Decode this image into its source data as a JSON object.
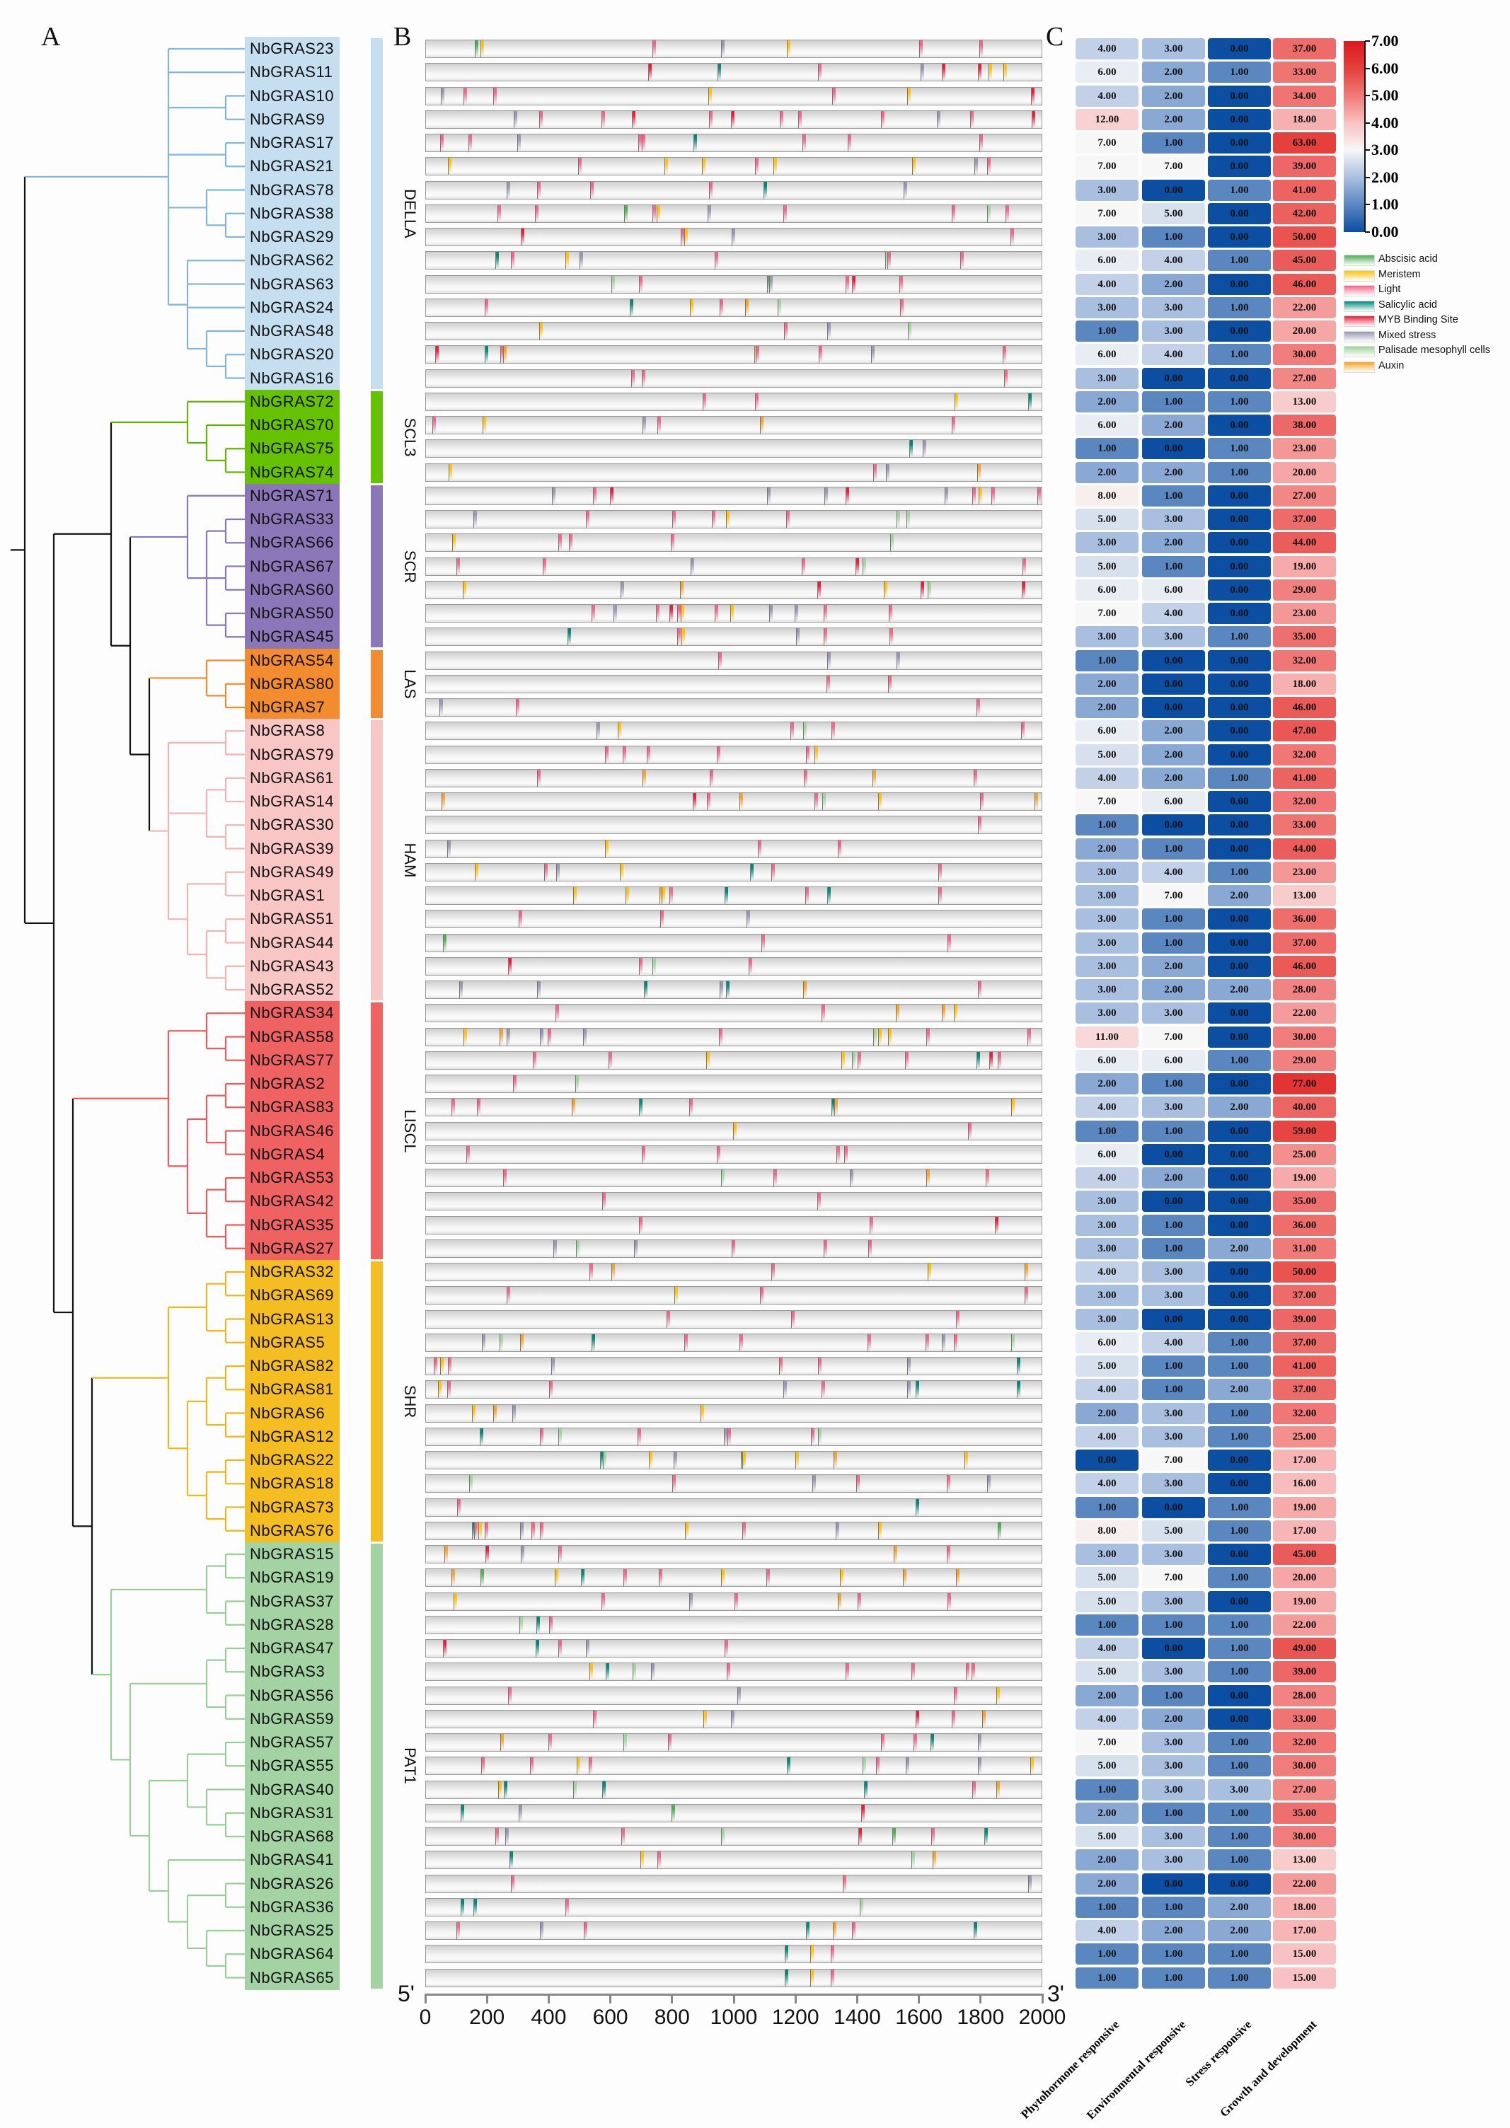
{
  "panels": {
    "a": "A",
    "b": "B",
    "c": "C"
  },
  "subfamilies": [
    {
      "name": "DELLA",
      "color": "#c5dff0",
      "branch": "#7fb5df",
      "start": 0,
      "end": 14
    },
    {
      "name": "SCL3",
      "color": "#66c200",
      "branch": "#5fb800",
      "start": 15,
      "end": 18
    },
    {
      "name": "SCR",
      "color": "#8b77b8",
      "branch": "#8b77b8",
      "start": 19,
      "end": 25
    },
    {
      "name": "LAS",
      "color": "#f28c2f",
      "branch": "#f28c2f",
      "start": 26,
      "end": 28
    },
    {
      "name": "HAM",
      "color": "#f9c6c6",
      "branch": "#f6b3b3",
      "start": 29,
      "end": 40
    },
    {
      "name": "LISCL",
      "color": "#ef6262",
      "branch": "#ef5b5b",
      "start": 41,
      "end": 51
    },
    {
      "name": "SHR",
      "color": "#f4bd22",
      "branch": "#f2b61a",
      "start": 52,
      "end": 63
    },
    {
      "name": "PAT1",
      "color": "#a3d3a2",
      "branch": "#98cf97",
      "start": 64,
      "end": 82
    }
  ],
  "tree": [
    [
      0,
      1,
      [
        2,
        3
      ],
      [
        4,
        5
      ],
      [
        6,
        [
          7,
          8
        ]
      ],
      [
        9,
        10,
        11,
        [
          12,
          [
            13,
            14
          ]
        ]
      ]
    ],
    [
      [
        [
          15,
          [
            16,
            [
              17,
              18
            ]
          ]
        ],
        [
          [
            19,
            [
              [
                20,
                21
              ],
              [
                22,
                23
              ],
              [
                24,
                25
              ]
            ]
          ],
          [
            [
              26,
              [
                27,
                28
              ]
            ],
            [
              [
                29,
                30
              ],
              [
                [
                  31,
                  32
                ],
                [
                  33,
                  34
                ]
              ],
              [
                [
                  35,
                  36
                ],
                [
                  [
                    37,
                    38
                  ],
                  [
                    39,
                    40
                  ]
                ]
              ]
            ]
          ]
        ]
      ],
      [
        [
          [
            41,
            [
              42,
              43
            ]
          ],
          [
            [
              [
                44,
                45
              ],
              [
                46,
                47
              ]
            ],
            [
              [
                48,
                49
              ],
              [
                50,
                51
              ]
            ]
          ]
        ],
        [
          [
            [
              [
                52,
                53
              ],
              [
                54,
                55
              ]
            ],
            [
              [
                [
                  56,
                  57
                ],
                [
                  58,
                  59
                ]
              ],
              [
                [
                  60,
                  61
                ],
                [
                  62,
                  63
                ]
              ]
            ]
          ],
          [
            [
              [
                64,
                65
              ],
              [
                66,
                67
              ]
            ],
            [
              [
                [
                  68,
                  69
                ],
                [
                  70,
                  71
                ]
              ],
              [
                [
                  [
                    72,
                    73
                  ],
                  [
                    74,
                    [
                      75,
                      76
                    ]
                  ]
                ],
                [
                  77,
                  [
                    [
                      78,
                      79
                    ],
                    [
                      80,
                      [
                        81,
                        82
                      ]
                    ]
                  ]
                ]
              ]
            ]
          ]
        ]
      ]
    ]
  ],
  "motif_types": [
    {
      "code": "A",
      "label": "Abscisic acid",
      "color": "#4caf50"
    },
    {
      "code": "M",
      "label": "Meristem",
      "color": "#ffc107"
    },
    {
      "code": "L",
      "label": "Light",
      "color": "#f2668b"
    },
    {
      "code": "S",
      "label": "Salicylic acid",
      "color": "#00897b"
    },
    {
      "code": "Y",
      "label": "MYB Binding Site",
      "color": "#ee1b3a"
    },
    {
      "code": "X",
      "label": "Mixed stress",
      "color": "#9896b3"
    },
    {
      "code": "P",
      "label": "Palisade mesophyll cells",
      "color": "#9fd49a"
    },
    {
      "code": "U",
      "label": "Auxin",
      "color": "#f7a325"
    }
  ],
  "motif_axis": {
    "min": 0,
    "max": 2000,
    "ticks": [
      "0",
      "200",
      "400",
      "600",
      "800",
      "1000",
      "1200",
      "1400",
      "1600",
      "1800",
      "2000"
    ],
    "five_prime": "5'",
    "three_prime": "3'"
  },
  "genes": [
    {
      "name": "NbGRAS23",
      "motifs": "159A 176M 736L 958X 1173M 1603L 1798L"
    },
    {
      "name": "NbGRAS11",
      "motifs": "721Y 947S 1274L 1607X 1676Y 1792Y 1827M 1876M"
    },
    {
      "name": "NbGRAS10",
      "motifs": "48X 122L 218L 917M 1319L 1564M 1965Y"
    },
    {
      "name": "NbGRAS9",
      "motifs": "285X 367L 569L 668Y 920L 990Y 1150L 1210L 1479L 1660X 1768L 1967Y"
    },
    {
      "name": "NbGRAS17",
      "motifs": "47L 138L 297X 690L 701L 870S 1223L 1371L 1798L"
    },
    {
      "name": "NbGRAS21",
      "motifs": "72M 495L 775M 896M 1068L 1128M 1579M 1782X 1824L"
    },
    {
      "name": "NbGRAS78",
      "motifs": "261X 360L 533L 920L 1096S 1552X"
    },
    {
      "name": "NbGRAS38",
      "motifs": "233L 354L 644A 735L 749M 915X 1161L 1707L 1824P 1883L"
    },
    {
      "name": "NbGRAS29",
      "motifs": "309Y 828L 840M 992X 1899L"
    },
    {
      "name": "NbGRAS62",
      "motifs": "225S 276L 452M 498X 939L 1492P 1499L 1736L"
    },
    {
      "name": "NbGRAS63",
      "motifs": "603P 691L 1108A 1115X 1364L 1384Y 1538L"
    },
    {
      "name": "NbGRAS24",
      "motifs": "190L 661S 857M 955L 1036U 1143P 1540L"
    },
    {
      "name": "NbGRAS48",
      "motifs": "367M 1164L 1303X 1565P"
    },
    {
      "name": "NbGRAS20",
      "motifs": "30Y 190S 241L 251U 1066M 1071L 1276L 1446X 1874L"
    },
    {
      "name": "NbGRAS16",
      "motifs": "667L 702L 1878L"
    },
    {
      "name": "NbGRAS72",
      "motifs": "898L 1070L 1717M 1956S"
    },
    {
      "name": "NbGRAS70",
      "motifs": "21L 184M 704X 752L 1085U 1708L"
    },
    {
      "name": "NbGRAS75",
      "motifs": "1570S 1614X"
    },
    {
      "name": "NbGRAS74",
      "motifs": "73M 1454L 1495X 1790U"
    },
    {
      "name": "NbGRAS71",
      "motifs": "410X 543L 598Y 1109X 1294X 1363Y 1686X 1775L 1796M 1837L 1987L"
    },
    {
      "name": "NbGRAS33",
      "motifs": "154X 520L 801L 929L 975M 1170L 1528P 1560P"
    },
    {
      "name": "NbGRAS66",
      "motifs": "85M 430L 464L 795L 1508P"
    },
    {
      "name": "NbGRAS67",
      "motifs": "99L 379L 860X 1220L 1396Y 1418P 1939L"
    },
    {
      "name": "NbGRAS60",
      "motifs": "119M 632X 826U 1272Y 1487M 1608Y 1629P 1936Y"
    },
    {
      "name": "NbGRAS50",
      "motifs": "538L 610X 747L 791Y 817L 827M 937L 988M 1115X 1197X 1293L 1504L"
    },
    {
      "name": "NbGRAS45",
      "motifs": "460S 817L 830M 1203X 1293L 1506L"
    },
    {
      "name": "NbGRAS54",
      "motifs": "949L 1303X 1528X"
    },
    {
      "name": "NbGRAS80",
      "motifs": "1300L 1500L"
    },
    {
      "name": "NbGRAS7",
      "motifs": "43X 293L 1789L"
    },
    {
      "name": "NbGRAS8",
      "motifs": "555X 623M 1183L 1225P 1317L 1934L"
    },
    {
      "name": "NbGRAS79",
      "motifs": "581L 640L 717L 945L 1235L 1261M"
    },
    {
      "name": "NbGRAS61",
      "motifs": "361L 704U 922L 1227L 1450U 1779L"
    },
    {
      "name": "NbGRAS14",
      "motifs": "50U 867Y 913L 1018U 1263L 1287P 1468M 1799L 1978U"
    },
    {
      "name": "NbGRAS30",
      "motifs": "1792L"
    },
    {
      "name": "NbGRAS39",
      "motifs": "68X 581M 1079L 1337L"
    },
    {
      "name": "NbGRAS49",
      "motifs": "158M 383L 422X 629M 1052S 1122L 1665L"
    },
    {
      "name": "NbGRAS1",
      "motifs": "478M 648M 758U 765M 790L 971S 1233L 1304S 1665L"
    },
    {
      "name": "NbGRAS51",
      "motifs": "302L 762L 1042X"
    },
    {
      "name": "NbGRAS44",
      "motifs": "55A 1089L 1694L"
    },
    {
      "name": "NbGRAS43",
      "motifs": "266Y 691L 736P 1048L"
    },
    {
      "name": "NbGRAS52",
      "motifs": "109X 361X 708S 955X 975S 1226U 1792L"
    },
    {
      "name": "NbGRAS34",
      "motifs": "420L 1285L 1526U 1677U 1715M"
    },
    {
      "name": "NbGRAS58",
      "motifs": "122M 238U 263X 371X 396L 511X 952L 1452P 1468M 1502M 1625L 1953L"
    },
    {
      "name": "NbGRAS77",
      "motifs": "348L 594L 911M 1349M 1385P 1403L 1557L 1789S 1829Y 1857L"
    },
    {
      "name": "NbGRAS2",
      "motifs": "283L 486P"
    },
    {
      "name": "NbGRAS83",
      "motifs": "82L 165L 474U 691S 856L 1317S 1326U 1902M"
    },
    {
      "name": "NbGRAS46",
      "motifs": "997M 1762L"
    },
    {
      "name": "NbGRAS4",
      "motifs": "130L 702L 945L 1334L 1359L"
    },
    {
      "name": "NbGRAS53",
      "motifs": "250L 959P 1128L 1376X 1626U 1819L"
    },
    {
      "name": "NbGRAS42",
      "motifs": "573L 1272L"
    },
    {
      "name": "NbGRAS35",
      "motifs": "691L 1442L 1848Y"
    },
    {
      "name": "NbGRAS27",
      "motifs": "413X 487P 675X 992L 1293L 1437L"
    },
    {
      "name": "NbGRAS32",
      "motifs": "530L 602U 1121L 1631M 1945U"
    },
    {
      "name": "NbGRAS69",
      "motifs": "262L 808M 1085L 1944L"
    },
    {
      "name": "NbGRAS13",
      "motifs": "781L 1186L 1721L"
    },
    {
      "name": "NbGRAS5",
      "motifs": "182X 238P 305U 538S 838L 1018L 1435L 1624L 1676X 1715L 1901P"
    },
    {
      "name": "NbGRAS82",
      "motifs": "26L 46M 72L 407X 1148L 1274L 1564X 1919S"
    },
    {
      "name": "NbGRAS81",
      "motifs": "40M 68L 401L 1161X 1285L 1564X 1591S 1919S"
    },
    {
      "name": "NbGRAS6",
      "motifs": "149M 218U 281X 893M"
    },
    {
      "name": "NbGRAS12",
      "motifs": "175S 370L 431P 687L 967X 980L 1250L 1274P"
    },
    {
      "name": "NbGRAS22",
      "motifs": "566S 574P 723M 805X 1023A 1027M 1199M 1323U 1750M"
    },
    {
      "name": "NbGRAS18",
      "motifs": "141P 800L 1255X 1398L 1691L 1823X"
    },
    {
      "name": "NbGRAS73",
      "motifs": "102L 1590S"
    },
    {
      "name": "NbGRAS76",
      "motifs": "149S 156L 169M 190L 305X 343L 371L 842M 1028L 1332X 1470M 1857A"
    },
    {
      "name": "NbGRAS15",
      "motifs": "60U 194Y 308X 431L 1519U 1691L"
    },
    {
      "name": "NbGRAS19",
      "motifs": "82U 177A 418M 503S 641L 757L 959M 1105L 1345M 1549U 1721U"
    },
    {
      "name": "NbGRAS37",
      "motifs": "89M 569L 856X 1003L 1339U 1403L 1695L"
    },
    {
      "name": "NbGRAS28",
      "motifs": "304P 358S 399L"
    },
    {
      "name": "NbGRAS47",
      "motifs": "55Y 357S 429L 520X 969L"
    },
    {
      "name": "NbGRAS3",
      "motifs": "530M 584S 672P 732X 977L 1363L 1577L 1754L 1772L"
    },
    {
      "name": "NbGRAS56",
      "motifs": "266L 1011X 1715L 1853M"
    },
    {
      "name": "NbGRAS59",
      "motifs": "543L 902M 990X 1590Y 1707L 1807U"
    },
    {
      "name": "NbGRAS57",
      "motifs": "242U 397L 641P 787L 1478L 1583L 1639S 1792X"
    },
    {
      "name": "NbGRAS55",
      "motifs": "180L 339L 489M 528L 1173S 1418P 1461L 1558X 1794X 1964M"
    },
    {
      "name": "NbGRAS40",
      "motifs": "235M 254S 478P 572S 1424S 1775L 1852U"
    },
    {
      "name": "NbGRAS31",
      "motifs": "113S 300X 797A 1414Y"
    },
    {
      "name": "NbGRAS68",
      "motifs": "225L 258X 635L 959P 1405Y 1514A 1642L 1814S"
    },
    {
      "name": "NbGRAS41",
      "motifs": "271S 697M 751L 1577P 1646U"
    },
    {
      "name": "NbGRAS26",
      "motifs": "275L 1355L 1956X"
    },
    {
      "name": "NbGRAS36",
      "motifs": "113S 154S 452L 1410P"
    },
    {
      "name": "NbGRAS25",
      "motifs": "98L 371X 513L 1234S 1321U 1385L 1780S"
    },
    {
      "name": "NbGRAS64",
      "motifs": "1165S 1248M 1315L"
    },
    {
      "name": "NbGRAS65",
      "motifs": "1165S 1248M 1315L"
    }
  ],
  "chart_data": {
    "type": "heatmap",
    "columns": [
      "Phytohormone responsive",
      "Environmental responsive",
      "Stress responsive",
      "Growth and development"
    ],
    "color_scale": {
      "transform": "log2(value+1)",
      "min": 0,
      "max": 7,
      "ticks": [
        "0.00",
        "1.00",
        "2.00",
        "3.00",
        "4.00",
        "5.00",
        "6.00",
        "7.00"
      ],
      "stops": [
        "#0b4ea2",
        "#5b87c1",
        "#a9bfe0",
        "#f7f7f7",
        "#f9c2c2",
        "#f07a78",
        "#e5403c",
        "#db1a1c"
      ]
    },
    "values": [
      [
        4,
        3,
        0,
        37
      ],
      [
        6,
        2,
        1,
        33
      ],
      [
        4,
        2,
        0,
        34
      ],
      [
        12,
        2,
        0,
        18
      ],
      [
        7,
        1,
        0,
        63
      ],
      [
        7,
        7,
        0,
        39
      ],
      [
        3,
        0,
        1,
        41
      ],
      [
        7,
        5,
        0,
        42
      ],
      [
        3,
        1,
        0,
        50
      ],
      [
        6,
        4,
        1,
        45
      ],
      [
        4,
        2,
        0,
        46
      ],
      [
        3,
        3,
        1,
        22
      ],
      [
        1,
        3,
        0,
        20
      ],
      [
        6,
        4,
        1,
        30
      ],
      [
        3,
        0,
        0,
        27
      ],
      [
        2,
        1,
        1,
        13
      ],
      [
        6,
        2,
        0,
        38
      ],
      [
        1,
        0,
        1,
        23
      ],
      [
        2,
        2,
        1,
        20
      ],
      [
        8,
        1,
        0,
        27
      ],
      [
        5,
        3,
        0,
        37
      ],
      [
        3,
        2,
        0,
        44
      ],
      [
        5,
        1,
        0,
        19
      ],
      [
        6,
        6,
        0,
        29
      ],
      [
        7,
        4,
        0,
        23
      ],
      [
        3,
        3,
        1,
        35
      ],
      [
        1,
        0,
        0,
        32
      ],
      [
        2,
        0,
        0,
        18
      ],
      [
        2,
        0,
        0,
        46
      ],
      [
        6,
        2,
        0,
        47
      ],
      [
        5,
        2,
        0,
        32
      ],
      [
        4,
        2,
        1,
        41
      ],
      [
        7,
        6,
        0,
        32
      ],
      [
        1,
        0,
        0,
        33
      ],
      [
        2,
        1,
        0,
        44
      ],
      [
        3,
        4,
        1,
        23
      ],
      [
        3,
        7,
        2,
        13
      ],
      [
        3,
        1,
        0,
        36
      ],
      [
        3,
        1,
        0,
        37
      ],
      [
        3,
        2,
        0,
        46
      ],
      [
        3,
        2,
        2,
        28
      ],
      [
        3,
        3,
        0,
        22
      ],
      [
        11,
        7,
        0,
        30
      ],
      [
        6,
        6,
        1,
        29
      ],
      [
        2,
        1,
        0,
        77
      ],
      [
        4,
        3,
        2,
        40
      ],
      [
        1,
        1,
        0,
        59
      ],
      [
        6,
        0,
        0,
        25
      ],
      [
        4,
        2,
        0,
        19
      ],
      [
        3,
        0,
        0,
        35
      ],
      [
        3,
        1,
        0,
        36
      ],
      [
        3,
        1,
        2,
        31
      ],
      [
        4,
        3,
        0,
        50
      ],
      [
        3,
        3,
        0,
        37
      ],
      [
        3,
        0,
        0,
        39
      ],
      [
        6,
        4,
        1,
        37
      ],
      [
        5,
        1,
        1,
        41
      ],
      [
        4,
        1,
        2,
        37
      ],
      [
        2,
        3,
        1,
        32
      ],
      [
        4,
        3,
        1,
        25
      ],
      [
        0,
        7,
        0,
        17
      ],
      [
        4,
        3,
        0,
        16
      ],
      [
        1,
        0,
        1,
        19
      ],
      [
        8,
        5,
        1,
        17
      ],
      [
        3,
        3,
        0,
        45
      ],
      [
        5,
        7,
        1,
        20
      ],
      [
        5,
        3,
        0,
        19
      ],
      [
        1,
        1,
        1,
        22
      ],
      [
        4,
        0,
        1,
        49
      ],
      [
        5,
        3,
        1,
        39
      ],
      [
        2,
        1,
        0,
        28
      ],
      [
        4,
        2,
        0,
        33
      ],
      [
        7,
        3,
        1,
        32
      ],
      [
        5,
        3,
        1,
        30
      ],
      [
        1,
        3,
        3,
        27
      ],
      [
        2,
        1,
        1,
        35
      ],
      [
        5,
        3,
        1,
        30
      ],
      [
        2,
        3,
        1,
        13
      ],
      [
        2,
        0,
        0,
        22
      ],
      [
        1,
        1,
        2,
        18
      ],
      [
        4,
        2,
        2,
        17
      ],
      [
        1,
        1,
        1,
        15
      ],
      [
        1,
        1,
        1,
        15
      ]
    ]
  }
}
